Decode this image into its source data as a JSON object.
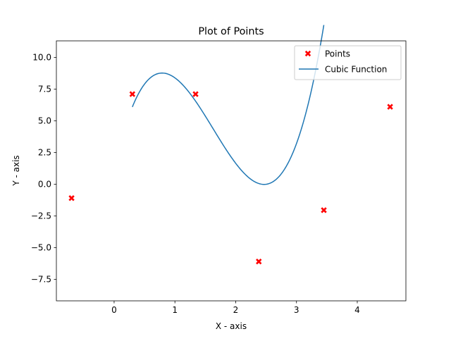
{
  "chart_data": {
    "type": "line",
    "title": "Plot of Points",
    "xlabel": "X - axis",
    "ylabel": "Y - axis",
    "xlim": [
      -0.95,
      4.8
    ],
    "ylim": [
      -9.2,
      11.3
    ],
    "xticks": [
      0,
      1,
      2,
      3,
      4
    ],
    "xtick_labels": [
      "0",
      "1",
      "2",
      "3",
      "4"
    ],
    "yticks": [
      -7.5,
      -5.0,
      -2.5,
      0.0,
      2.5,
      5.0,
      7.5,
      10.0
    ],
    "ytick_labels": [
      "−7.5",
      "−5.0",
      "−2.5",
      "0.0",
      "2.5",
      "5.0",
      "7.5",
      "10.0"
    ],
    "grid": false,
    "legend_position": "top-right",
    "scatter": {
      "name": "Points",
      "color": "#ff0000",
      "marker": "x-filled",
      "points": [
        {
          "x": -0.7,
          "y": -1.1
        },
        {
          "x": 0.3,
          "y": 7.1
        },
        {
          "x": 1.34,
          "y": 7.1
        },
        {
          "x": 2.38,
          "y": -6.1
        },
        {
          "x": 3.45,
          "y": -2.05
        },
        {
          "x": 4.54,
          "y": 6.1
        }
      ]
    },
    "curve": {
      "name": "Cubic Function",
      "color": "#1f77b4",
      "x_range": [
        0.3,
        3.45
      ],
      "coefficients": [
        3.7174,
        -18.1585,
        21.7166,
        1.1072
      ]
    }
  }
}
